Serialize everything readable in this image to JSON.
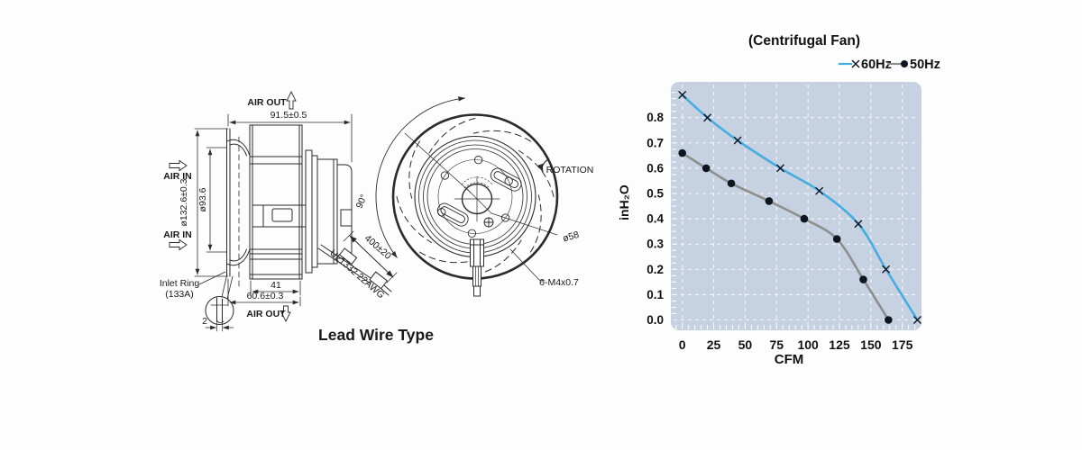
{
  "drawing": {
    "caption": "Lead Wire Type",
    "labels": {
      "air_out_top": "AIR OUT",
      "air_in_upper": "AIR IN",
      "air_in_lower": "AIR IN",
      "air_out_bottom": "AIR OUT",
      "inlet_ring_line1": "Inlet Ring",
      "inlet_ring_line2": "(133A)",
      "rotation": "ROTATION"
    },
    "dimensions": {
      "overall_width": "91.5±0.5",
      "outer_diameter": "ø132.6±0.3",
      "inlet_diameter": "ø93.6",
      "motor_depth": "41",
      "housing_depth": "60.6±0.3",
      "ring_thickness": "2",
      "wire_length": "400±20",
      "wire_spec": "UL1332 22AWG",
      "rotation_angle": "90°",
      "hub_circle": "ø58",
      "mounting_holes": "6-M4x0.7"
    }
  },
  "chart_data": {
    "type": "line",
    "title": "(Centrifugal Fan)",
    "xlabel": "CFM",
    "ylabel": "inH₂O",
    "xlim": [
      -9,
      190
    ],
    "ylim": [
      -0.04,
      0.94
    ],
    "xticks": [
      0,
      25,
      50,
      75,
      100,
      125,
      150,
      175
    ],
    "yticks": [
      0.0,
      0.1,
      0.2,
      0.3,
      0.4,
      0.5,
      0.6,
      0.7,
      0.8
    ],
    "x_minor_step": 5,
    "y_minor_step": 0.025,
    "grid": true,
    "legend_position": "top-right",
    "colors": {
      "plot_bg": "#c6d1e1",
      "grid": "#ffffff",
      "text": "#111111",
      "marker": "#0e1420"
    },
    "series": [
      {
        "name": "60Hz",
        "marker": "x",
        "color": "#47ade0",
        "points": [
          [
            0,
            0.89
          ],
          [
            20,
            0.8
          ],
          [
            44,
            0.71
          ],
          [
            78,
            0.6
          ],
          [
            109,
            0.51
          ],
          [
            140,
            0.38
          ],
          [
            162,
            0.2
          ],
          [
            187,
            0.0
          ]
        ]
      },
      {
        "name": "50Hz",
        "marker": "dot",
        "color": "#8e8e8e",
        "points": [
          [
            0,
            0.66
          ],
          [
            19,
            0.6
          ],
          [
            39,
            0.54
          ],
          [
            69,
            0.47
          ],
          [
            97,
            0.4
          ],
          [
            123,
            0.32
          ],
          [
            144,
            0.16
          ],
          [
            164,
            0.0
          ]
        ]
      }
    ]
  }
}
